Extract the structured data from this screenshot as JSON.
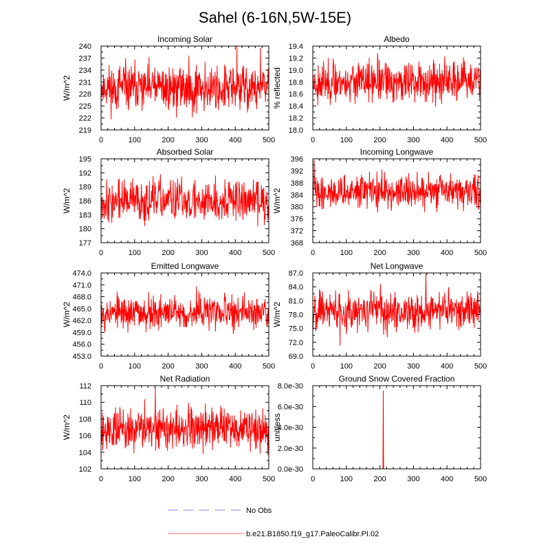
{
  "title": "Sahel (6-16N,5W-15E)",
  "colors": {
    "model": "#ff0000",
    "obs": "#9999ee",
    "axis": "#000000"
  },
  "legend": [
    {
      "label": "No Obs",
      "style": "dashed",
      "color": "#9999ee"
    },
    {
      "label": "b.e21.B1850.f19_g17.PaleoCalibr.PI.02",
      "style": "solid",
      "color": "#ff8888"
    }
  ],
  "chart_data": [
    {
      "type": "line",
      "title": "Incoming Solar",
      "ylabel": "W/m^2",
      "xlim": [
        0,
        500
      ],
      "xticks": [
        "0",
        "100",
        "200",
        "300",
        "400",
        "500"
      ],
      "ylim": [
        219,
        240
      ],
      "yticks": [
        "219",
        "222",
        "225",
        "228",
        "231",
        "234",
        "237",
        "240"
      ],
      "mean": 229.5,
      "amp": 3.0,
      "seed": 11,
      "series": [
        {
          "name": "b.e21.B1850.f19_g17.PaleoCalibr.PI.02",
          "n": 500
        }
      ]
    },
    {
      "type": "line",
      "title": "Albedo",
      "ylabel": "% reflected",
      "xlim": [
        0,
        500
      ],
      "xticks": [
        "0",
        "100",
        "200",
        "300",
        "400",
        "500"
      ],
      "ylim": [
        18.0,
        19.4
      ],
      "yticks": [
        "18.0",
        "18.2",
        "18.4",
        "18.6",
        "18.8",
        "19.0",
        "19.2",
        "19.4"
      ],
      "mean": 18.8,
      "amp": 0.17,
      "seed": 23,
      "series": [
        {
          "name": "b.e21.B1850.f19_g17.PaleoCalibr.PI.02",
          "n": 500
        }
      ]
    },
    {
      "type": "line",
      "title": "Absorbed Solar",
      "ylabel": "W/m^2",
      "xlim": [
        0,
        500
      ],
      "xticks": [
        "0",
        "100",
        "200",
        "300",
        "400",
        "500"
      ],
      "ylim": [
        177,
        195
      ],
      "yticks": [
        "177",
        "180",
        "183",
        "186",
        "189",
        "192",
        "195"
      ],
      "mean": 186.0,
      "amp": 2.3,
      "seed": 37,
      "series": [
        {
          "name": "b.e21.B1850.f19_g17.PaleoCalibr.PI.02",
          "n": 500
        }
      ]
    },
    {
      "type": "line",
      "title": "Incoming Longwave",
      "ylabel": "W/m^2",
      "xlim": [
        0,
        500
      ],
      "xticks": [
        "0",
        "100",
        "200",
        "300",
        "400",
        "500"
      ],
      "ylim": [
        368,
        396
      ],
      "yticks": [
        "368",
        "372",
        "376",
        "380",
        "384",
        "388",
        "392",
        "396"
      ],
      "mean": 385.0,
      "amp": 2.8,
      "seed": 41,
      "series": [
        {
          "name": "b.e21.B1850.f19_g17.PaleoCalibr.PI.02",
          "n": 500
        }
      ]
    },
    {
      "type": "line",
      "title": "Emitted Longwave",
      "ylabel": "W/m^2",
      "xlim": [
        0,
        500
      ],
      "xticks": [
        "0",
        "100",
        "200",
        "300",
        "400",
        "500"
      ],
      "ylim": [
        453.0,
        474.0
      ],
      "yticks": [
        "453.0",
        "456.0",
        "459.0",
        "462.0",
        "465.0",
        "468.0",
        "471.0",
        "474.0"
      ],
      "mean": 464.0,
      "amp": 2.2,
      "seed": 53,
      "series": [
        {
          "name": "b.e21.B1850.f19_g17.PaleoCalibr.PI.02",
          "n": 500
        }
      ]
    },
    {
      "type": "line",
      "title": "Net Longwave",
      "ylabel": "W/m^2",
      "xlim": [
        0,
        500
      ],
      "xticks": [
        "0",
        "100",
        "200",
        "300",
        "400",
        "500"
      ],
      "ylim": [
        69.0,
        87.0
      ],
      "yticks": [
        "69.0",
        "72.0",
        "75.0",
        "78.0",
        "81.0",
        "84.0",
        "87.0"
      ],
      "mean": 79.0,
      "amp": 2.2,
      "seed": 67,
      "series": [
        {
          "name": "b.e21.B1850.f19_g17.PaleoCalibr.PI.02",
          "n": 500
        }
      ]
    },
    {
      "type": "line",
      "title": "Net Radiation",
      "ylabel": "W/m^2",
      "xlim": [
        0,
        500
      ],
      "xticks": [
        "0",
        "100",
        "200",
        "300",
        "400",
        "500"
      ],
      "ylim": [
        102,
        112
      ],
      "yticks": [
        "102",
        "104",
        "106",
        "108",
        "110",
        "112"
      ],
      "mean": 106.8,
      "amp": 1.3,
      "seed": 79,
      "series": [
        {
          "name": "b.e21.B1850.f19_g17.PaleoCalibr.PI.02",
          "n": 500
        }
      ]
    },
    {
      "type": "line",
      "title": "Ground Snow Covered Fraction",
      "ylabel": "unitless",
      "xlim": [
        0,
        500
      ],
      "xticks": [
        "0",
        "100",
        "200",
        "300",
        "400",
        "500"
      ],
      "ylim": [
        0,
        8e-30
      ],
      "yticks": [
        "0.0e-30",
        "2.0e-30",
        "4.0e-30",
        "6.0e-30",
        "8.0e-30"
      ],
      "mean": 0,
      "amp": 0,
      "seed": 0,
      "spike": {
        "x": 210,
        "y": 7.5e-30
      },
      "series": [
        {
          "name": "b.e21.B1850.f19_g17.PaleoCalibr.PI.02",
          "n": 500
        }
      ]
    }
  ]
}
